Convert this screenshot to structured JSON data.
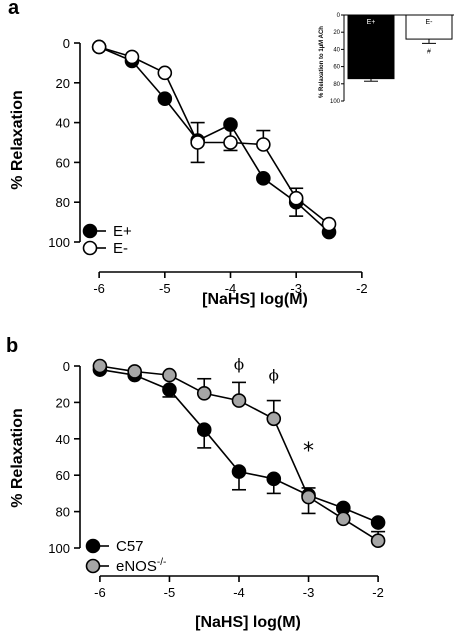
{
  "chart_data": [
    {
      "panel": "a",
      "type": "line",
      "xlabel": "[NaHS] log(M)",
      "ylabel": "% Relaxation",
      "xlim": [
        -6.2,
        -1.8
      ],
      "ylim": [
        0,
        100
      ],
      "y_inverted": true,
      "xticks": [
        -6,
        -5,
        -4,
        -3,
        -2
      ],
      "yticks": [
        0,
        20,
        40,
        60,
        80,
        100
      ],
      "grid": false,
      "legend_position": "bottom-left",
      "series": [
        {
          "name": "E+",
          "marker": "filled-circle",
          "color": "#000000",
          "x": [
            -6,
            -5.5,
            -5,
            -4.5,
            -4,
            -3.5,
            -3,
            -2.5
          ],
          "y": [
            2,
            9,
            28,
            49,
            41,
            68,
            80,
            95
          ],
          "err": [
            0,
            0,
            0,
            11,
            13,
            0,
            7,
            0
          ]
        },
        {
          "name": "E-",
          "marker": "open-circle",
          "color": "#ffffff",
          "x": [
            -6,
            -5.5,
            -5,
            -4.5,
            -4,
            -3.5,
            -3,
            -2.5
          ],
          "y": [
            2,
            7,
            15,
            50,
            50,
            51,
            78,
            91
          ],
          "err": [
            0,
            0,
            0,
            10,
            10,
            7,
            5,
            0
          ]
        }
      ],
      "inset": {
        "type": "bar",
        "ylabel": "% Relaxation to 1µM ACh",
        "ylim": [
          0,
          100
        ],
        "y_inverted": true,
        "yticks": [
          0,
          20,
          40,
          60,
          80,
          100
        ],
        "categories": [
          "E+",
          "E-"
        ],
        "values": [
          74,
          28
        ],
        "err": [
          3,
          5
        ],
        "colors": [
          "#000000",
          "#ffffff"
        ],
        "annotations": [
          {
            "category": "E-",
            "text": "#"
          }
        ]
      }
    },
    {
      "panel": "b",
      "type": "line",
      "xlabel": "[NaHS] log(M)",
      "ylabel": "% Relaxation",
      "xlim": [
        -6.2,
        -1.8
      ],
      "ylim": [
        0,
        100
      ],
      "y_inverted": true,
      "xticks": [
        -6,
        -5,
        -4,
        -3,
        -2
      ],
      "yticks": [
        0,
        20,
        40,
        60,
        80,
        100
      ],
      "grid": false,
      "legend_position": "bottom-left",
      "series": [
        {
          "name": "C57",
          "marker": "filled-circle",
          "color": "#000000",
          "x": [
            -6,
            -5.5,
            -5,
            -4.5,
            -4,
            -3.5,
            -3,
            -2.5,
            -2
          ],
          "y": [
            2,
            5,
            13,
            35,
            58,
            62,
            71,
            78,
            86
          ],
          "err": [
            0,
            0,
            4,
            10,
            10,
            8,
            10,
            0,
            0
          ]
        },
        {
          "name": "eNOS",
          "name_superscript": "-/-",
          "marker": "gray-circle",
          "color": "#a6a6a6",
          "x": [
            -6,
            -5.5,
            -5,
            -4.5,
            -4,
            -3.5,
            -3,
            -2.5,
            -2
          ],
          "y": [
            0,
            3,
            5,
            15,
            19,
            29,
            72,
            84,
            96
          ],
          "err": [
            0,
            0,
            0,
            8,
            10,
            10,
            5,
            0,
            5
          ]
        }
      ],
      "annotations": [
        {
          "text": "ϕ",
          "x": -4,
          "y": 2
        },
        {
          "text": "ϕ",
          "x": -3.5,
          "y": 8
        },
        {
          "text": "*",
          "x": -3,
          "y": 44
        }
      ]
    }
  ],
  "panel_labels": [
    "a",
    "b"
  ]
}
